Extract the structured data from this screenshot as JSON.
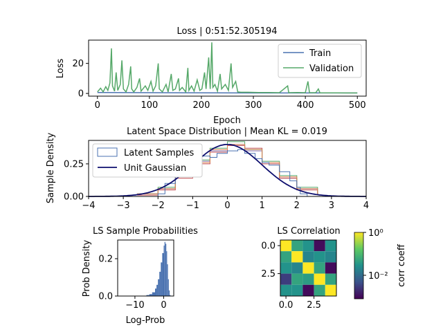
{
  "chart_data": [
    {
      "type": "line",
      "title": "Loss | 0:51:52.305194",
      "xlabel": "Epoch",
      "ylabel": "Loss",
      "xlim": [
        -17,
        517
      ],
      "ylim": [
        -1.8,
        35.5
      ],
      "x_ticks": [
        "0",
        "100",
        "200",
        "300",
        "400",
        "500"
      ],
      "y_ticks": [
        "0",
        "20"
      ],
      "legend": {
        "position": "upper right",
        "entries": [
          "Train",
          "Validation"
        ]
      },
      "series": [
        {
          "name": "Train",
          "color": "#4a72b0",
          "points": [
            [
              0,
              0.6
            ],
            [
              300,
              0.3
            ],
            [
              500,
              0.3
            ]
          ]
        },
        {
          "name": "Validation",
          "color": "#55a868",
          "points": [
            [
              0,
              1
            ],
            [
              6,
              3.5
            ],
            [
              11,
              1
            ],
            [
              16,
              4.5
            ],
            [
              20,
              2
            ],
            [
              24,
              7
            ],
            [
              27,
              30
            ],
            [
              29,
              5
            ],
            [
              33,
              1.5
            ],
            [
              36,
              14
            ],
            [
              39,
              2
            ],
            [
              44,
              6
            ],
            [
              47,
              22
            ],
            [
              50,
              3
            ],
            [
              55,
              1
            ],
            [
              60,
              6
            ],
            [
              64,
              18
            ],
            [
              66,
              3
            ],
            [
              70,
              1
            ],
            [
              76,
              4
            ],
            [
              81,
              10
            ],
            [
              84,
              1.5
            ],
            [
              92,
              5
            ],
            [
              97,
              2
            ],
            [
              103,
              8
            ],
            [
              107,
              1.5
            ],
            [
              112,
              5
            ],
            [
              117,
              20
            ],
            [
              119,
              3
            ],
            [
              125,
              1
            ],
            [
              132,
              6
            ],
            [
              136,
              1
            ],
            [
              142,
              13
            ],
            [
              145,
              2
            ],
            [
              150,
              3
            ],
            [
              156,
              10
            ],
            [
              158,
              2
            ],
            [
              163,
              4
            ],
            [
              170,
              1
            ],
            [
              174,
              17
            ],
            [
              176,
              2
            ],
            [
              181,
              5
            ],
            [
              186,
              1.5
            ],
            [
              192,
              9
            ],
            [
              197,
              2
            ],
            [
              201,
              3
            ],
            [
              206,
              14
            ],
            [
              209,
              3
            ],
            [
              214,
              24
            ],
            [
              217,
              3
            ],
            [
              220,
              34
            ],
            [
              222,
              4
            ],
            [
              226,
              6
            ],
            [
              231,
              1.5
            ],
            [
              236,
              13
            ],
            [
              239,
              3
            ],
            [
              246,
              6
            ],
            [
              252,
              2
            ],
            [
              257,
              20
            ],
            [
              260,
              4
            ],
            [
              266,
              8
            ],
            [
              270,
              1
            ],
            [
              276,
              0.8
            ],
            [
              290,
              0.8
            ],
            [
              310,
              0.6
            ],
            [
              330,
              0.6
            ],
            [
              350,
              0.5
            ],
            [
              366,
              5
            ],
            [
              368,
              0.5
            ],
            [
              385,
              0.6
            ],
            [
              400,
              0.5
            ],
            [
              405,
              8
            ],
            [
              408,
              0.5
            ],
            [
              420,
              0.5
            ],
            [
              425,
              3
            ],
            [
              428,
              0.4
            ],
            [
              440,
              0.4
            ],
            [
              460,
              0.4
            ],
            [
              480,
              0.3
            ],
            [
              500,
              0.3
            ]
          ]
        }
      ]
    },
    {
      "type": "histogram",
      "title": "Latent Space Distribution | Mean KL = 0.019",
      "xlabel": "",
      "ylabel": "Sample Density",
      "xlim": [
        -4,
        4
      ],
      "ylim": [
        0,
        0.43
      ],
      "x_ticks": [
        "−4",
        "−3",
        "−2",
        "−1",
        "0",
        "1",
        "2",
        "3",
        "4"
      ],
      "y_ticks": [
        "0.00",
        "0.25"
      ],
      "legend": {
        "position": "upper left",
        "entries": [
          "Latent Samples",
          "Unit Gaussian"
        ]
      },
      "gaussian_color": "#0d0e6e",
      "dim_colors": [
        "#4a72b0",
        "#dd8452",
        "#55a868",
        "#c44e52",
        "#8172b3"
      ],
      "sample_series": [
        {
          "color": "#4a72b0",
          "x": [
            -2.3,
            -2.0,
            -1.8,
            -1.5,
            -1.2,
            -1.0,
            -0.8,
            -0.5,
            -0.3,
            0.0,
            0.3,
            0.5,
            0.8,
            1.0,
            1.2,
            1.5,
            1.8,
            2.0,
            2.1,
            2.3
          ],
          "y": [
            0.0,
            0.02,
            0.1,
            0.2,
            0.29,
            0.32,
            0.31,
            0.3,
            0.33,
            0.35,
            0.36,
            0.33,
            0.29,
            0.26,
            0.24,
            0.19,
            0.12,
            0.07,
            0.02,
            0.0
          ]
        },
        {
          "color": "#dd8452",
          "x": [
            -2.6,
            -2.0,
            -1.5,
            -1.0,
            -0.5,
            0.0,
            0.5,
            1.0,
            1.5,
            2.0,
            2.6
          ],
          "y": [
            0.02,
            0.06,
            0.15,
            0.26,
            0.36,
            0.4,
            0.36,
            0.26,
            0.15,
            0.06,
            0.02
          ]
        },
        {
          "color": "#55a868",
          "x": [
            -2.6,
            -2.0,
            -1.5,
            -1.0,
            -0.5,
            0.0,
            0.5,
            1.0,
            1.5,
            2.0,
            2.6
          ],
          "y": [
            0.02,
            0.07,
            0.16,
            0.28,
            0.37,
            0.42,
            0.36,
            0.27,
            0.16,
            0.07,
            0.02
          ]
        },
        {
          "color": "#c44e52",
          "x": [
            -2.6,
            -2.0,
            -1.5,
            -1.0,
            -0.5,
            0.0,
            0.5,
            1.0,
            1.5,
            2.0,
            2.6
          ],
          "y": [
            0.01,
            0.05,
            0.14,
            0.25,
            0.34,
            0.39,
            0.37,
            0.25,
            0.14,
            0.05,
            0.01
          ]
        },
        {
          "color": "#8172b3",
          "x": [
            -2.6,
            -2.0,
            -1.5,
            -1.0,
            -0.5,
            0.0,
            0.5,
            1.0,
            1.5,
            2.0,
            2.6
          ],
          "y": [
            0.02,
            0.06,
            0.15,
            0.27,
            0.35,
            0.4,
            0.35,
            0.26,
            0.14,
            0.06,
            0.02
          ]
        }
      ]
    },
    {
      "type": "histogram",
      "title": "LS Sample Probabilities",
      "xlabel": "Log-Prob",
      "ylabel": "Prob Density",
      "xlim": [
        -16,
        3.5
      ],
      "ylim": [
        0,
        0.3
      ],
      "x_ticks": [
        "−10",
        "0"
      ],
      "y_ticks": [
        "0.0",
        "0.2"
      ],
      "color": "#4a72b0",
      "bins": [
        [
          -7,
          0.002
        ],
        [
          -6,
          0.005
        ],
        [
          -5,
          0.01
        ],
        [
          -4,
          0.02
        ],
        [
          -3,
          0.04
        ],
        [
          -2.5,
          0.06
        ],
        [
          -2,
          0.09
        ],
        [
          -1.5,
          0.13
        ],
        [
          -1,
          0.18
        ],
        [
          -0.5,
          0.23
        ],
        [
          0,
          0.27
        ],
        [
          0.3,
          0.29
        ],
        [
          0.6,
          0.28
        ],
        [
          0.9,
          0.24
        ],
        [
          1.2,
          0.17
        ],
        [
          1.5,
          0.09
        ],
        [
          1.8,
          0.03
        ],
        [
          2.1,
          0.005
        ]
      ]
    },
    {
      "type": "heatmap",
      "title": "LS Correlation",
      "x_ticks": [
        "0.0",
        "2.5"
      ],
      "y_ticks": [
        "0.0",
        "2.5"
      ],
      "matrix": [
        [
          1,
          0.05,
          0.03,
          0.001,
          0.03
        ],
        [
          0.05,
          1,
          0.02,
          0.03,
          0.02
        ],
        [
          0.03,
          0.02,
          1,
          0.05,
          0.001
        ],
        [
          0.003,
          0.05,
          0.04,
          1,
          0.05
        ],
        [
          0.03,
          0.03,
          0.001,
          0.05,
          1
        ]
      ],
      "colorbar": {
        "label": "corr coeff",
        "scale": "log",
        "range": [
          0.0008,
          1
        ],
        "ticks": [
          "10⁰",
          "10⁻²"
        ]
      }
    }
  ]
}
